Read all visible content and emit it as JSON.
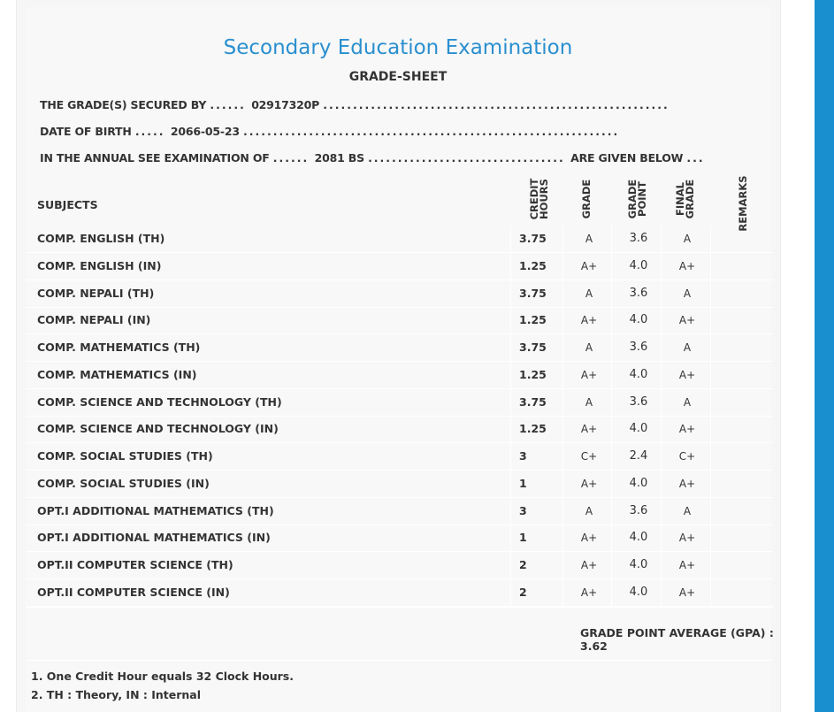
{
  "header": {
    "title": "Secondary Education Examination",
    "subtitle": "GRADE-SHEET"
  },
  "info": {
    "secured_by_label": "THE GRADE(S) SECURED BY",
    "symbol_no": "02917320P",
    "dob_label": "DATE OF BIRTH",
    "dob": "2066-05-23",
    "exam_label": "IN THE ANNUAL SEE EXAMINATION OF",
    "exam_year": "2081 BS",
    "given_below": "ARE GIVEN BELOW"
  },
  "table": {
    "headers": {
      "subjects": "SUBJECTS",
      "credit_hours_1": "CREDIT",
      "credit_hours_2": "HOURS",
      "grade": "GRADE",
      "grade_point_1": "GRADE",
      "grade_point_2": "POINT",
      "final_grade_1": "FINAL",
      "final_grade_2": "GRADE",
      "remarks": "REMARKS"
    },
    "rows": [
      {
        "subject": "COMP. ENGLISH (TH)",
        "credit": "3.75",
        "grade": "A",
        "gp": "3.6",
        "final": "A"
      },
      {
        "subject": "COMP. ENGLISH (IN)",
        "credit": "1.25",
        "grade": "A+",
        "gp": "4.0",
        "final": "A+"
      },
      {
        "subject": "COMP. NEPALI (TH)",
        "credit": "3.75",
        "grade": "A",
        "gp": "3.6",
        "final": "A"
      },
      {
        "subject": "COMP. NEPALI (IN)",
        "credit": "1.25",
        "grade": "A+",
        "gp": "4.0",
        "final": "A+"
      },
      {
        "subject": "COMP. MATHEMATICS (TH)",
        "credit": "3.75",
        "grade": "A",
        "gp": "3.6",
        "final": "A"
      },
      {
        "subject": "COMP. MATHEMATICS (IN)",
        "credit": "1.25",
        "grade": "A+",
        "gp": "4.0",
        "final": "A+"
      },
      {
        "subject": "COMP. SCIENCE AND TECHNOLOGY (TH)",
        "credit": "3.75",
        "grade": "A",
        "gp": "3.6",
        "final": "A"
      },
      {
        "subject": "COMP. SCIENCE AND TECHNOLOGY (IN)",
        "credit": "1.25",
        "grade": "A+",
        "gp": "4.0",
        "final": "A+"
      },
      {
        "subject": "COMP. SOCIAL STUDIES (TH)",
        "credit": "3",
        "grade": "C+",
        "gp": "2.4",
        "final": "C+"
      },
      {
        "subject": "COMP. SOCIAL STUDIES (IN)",
        "credit": "1",
        "grade": "A+",
        "gp": "4.0",
        "final": "A+"
      },
      {
        "subject": "OPT.I ADDITIONAL MATHEMATICS (TH)",
        "credit": "3",
        "grade": "A",
        "gp": "3.6",
        "final": "A"
      },
      {
        "subject": "OPT.I ADDITIONAL MATHEMATICS (IN)",
        "credit": "1",
        "grade": "A+",
        "gp": "4.0",
        "final": "A+"
      },
      {
        "subject": "OPT.II COMPUTER SCIENCE (TH)",
        "credit": "2",
        "grade": "A+",
        "gp": "4.0",
        "final": "A+"
      },
      {
        "subject": "OPT.II COMPUTER SCIENCE (IN)",
        "credit": "2",
        "grade": "A+",
        "gp": "4.0",
        "final": "A+"
      }
    ]
  },
  "gpa": {
    "label": "GRADE POINT AVERAGE (GPA) :",
    "value": "3.62"
  },
  "notes": [
    "1. One Credit Hour equals 32 Clock Hours.",
    "2. TH : Theory, IN : Internal"
  ],
  "colors": {
    "title": "#2a8fcf",
    "right_bar": "#1a8fd0"
  }
}
